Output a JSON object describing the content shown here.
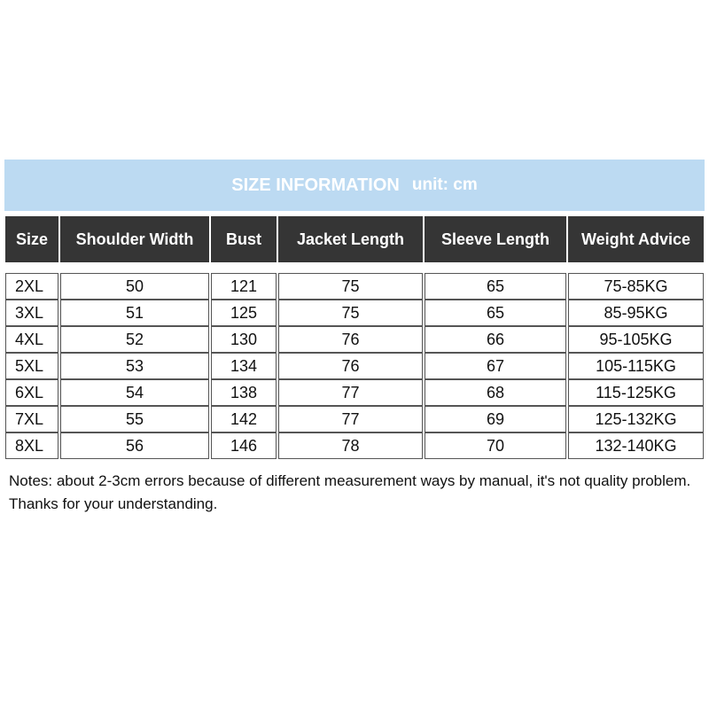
{
  "banner": {
    "title": "SIZE INFORMATION",
    "unit": "unit: cm"
  },
  "table": {
    "headers": [
      "Size",
      "Shoulder Width",
      "Bust",
      "Jacket Length",
      "Sleeve Length",
      "Weight Advice"
    ],
    "rows": [
      [
        "2XL",
        50,
        121,
        75,
        65,
        "75-85KG"
      ],
      [
        "3XL",
        51,
        125,
        75,
        65,
        "85-95KG"
      ],
      [
        "4XL",
        52,
        130,
        76,
        66,
        "95-105KG"
      ],
      [
        "5XL",
        53,
        134,
        76,
        67,
        "105-115KG"
      ],
      [
        "6XL",
        54,
        138,
        77,
        68,
        "115-125KG"
      ],
      [
        "7XL",
        55,
        142,
        77,
        69,
        "125-132KG"
      ],
      [
        "8XL",
        56,
        146,
        78,
        70,
        "132-140KG"
      ]
    ]
  },
  "notes": [
    "Notes: about 2-3cm errors because of different measurement ways by manual, it's not quality problem.",
    "Thanks for your understanding."
  ]
}
